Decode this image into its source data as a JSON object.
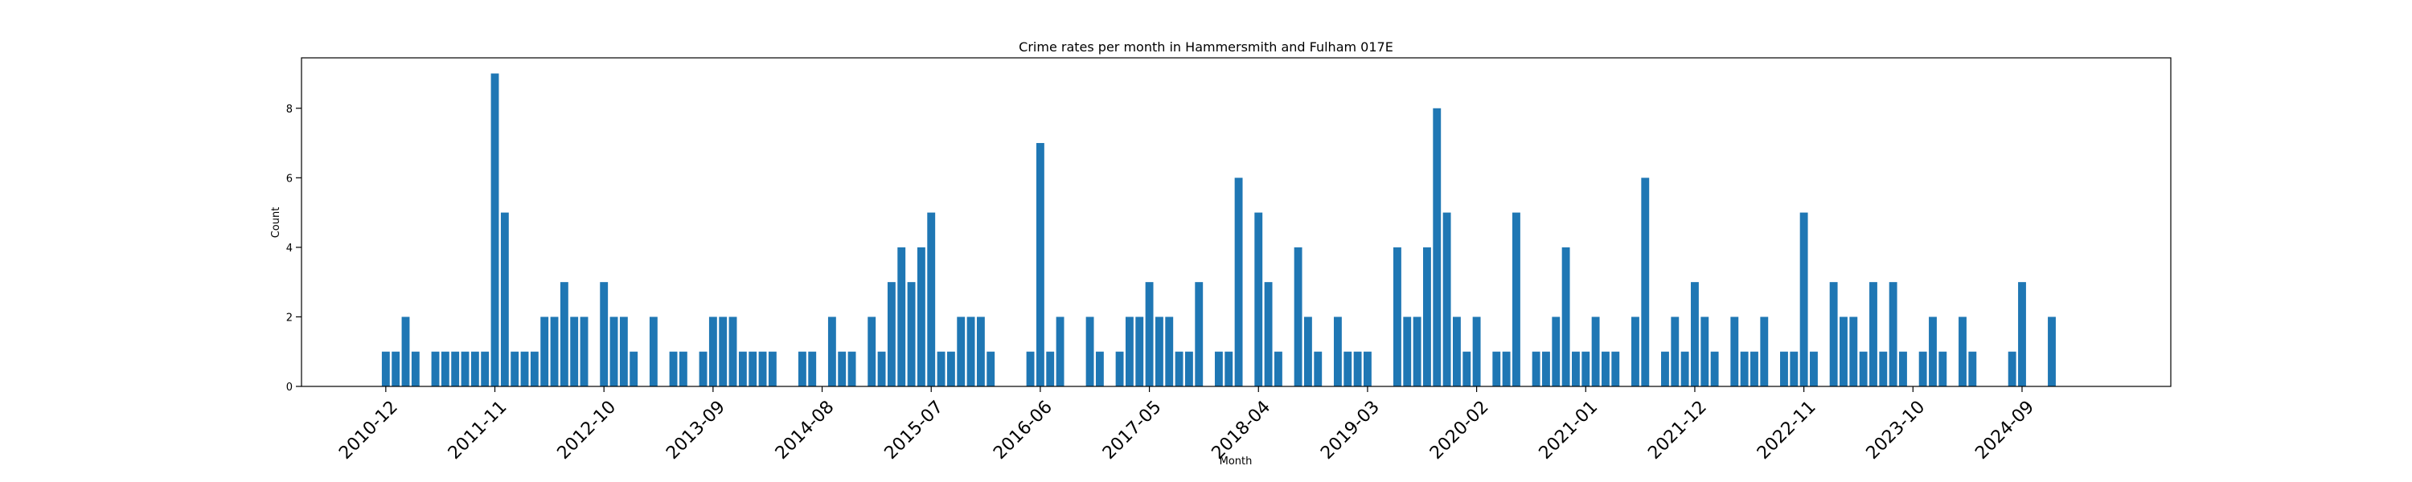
{
  "chart_data": {
    "type": "bar",
    "title": "Crime rates per month in Hammersmith and Fulham 017E",
    "xlabel": "Month",
    "ylabel": "Count",
    "ylim": [
      0,
      9.45
    ],
    "yticks": [
      0,
      2,
      4,
      6,
      8
    ],
    "x_start": "2010-12",
    "xlim_months": [
      -8.5,
      180
    ],
    "xticks": [
      "2010-12",
      "2011-11",
      "2012-10",
      "2013-09",
      "2014-08",
      "2015-07",
      "2016-06",
      "2017-05",
      "2018-04",
      "2019-03",
      "2020-02",
      "2021-01",
      "2021-12",
      "2022-11",
      "2023-10",
      "2024-09"
    ],
    "months": [
      "2010-12",
      "2011-01",
      "2011-02",
      "2011-03",
      "2011-05",
      "2011-06",
      "2011-07",
      "2011-08",
      "2011-09",
      "2011-10",
      "2011-11",
      "2011-12",
      "2012-01",
      "2012-02",
      "2012-03",
      "2012-04",
      "2012-05",
      "2012-06",
      "2012-07",
      "2012-08",
      "2012-10",
      "2012-11",
      "2012-12",
      "2013-01",
      "2013-03",
      "2013-05",
      "2013-06",
      "2013-08",
      "2013-09",
      "2013-10",
      "2013-11",
      "2013-12",
      "2014-01",
      "2014-02",
      "2014-03",
      "2014-06",
      "2014-07",
      "2014-09",
      "2014-10",
      "2014-11",
      "2015-01",
      "2015-02",
      "2015-03",
      "2015-04",
      "2015-05",
      "2015-06",
      "2015-07",
      "2015-08",
      "2015-09",
      "2015-10",
      "2015-11",
      "2015-12",
      "2016-01",
      "2016-05",
      "2016-06",
      "2016-07",
      "2016-08",
      "2016-11",
      "2016-12",
      "2017-02",
      "2017-03",
      "2017-04",
      "2017-05",
      "2017-06",
      "2017-07",
      "2017-08",
      "2017-09",
      "2017-10",
      "2017-12",
      "2018-01",
      "2018-02",
      "2018-04",
      "2018-05",
      "2018-06",
      "2018-08",
      "2018-09",
      "2018-10",
      "2018-12",
      "2019-01",
      "2019-02",
      "2019-03",
      "2019-06",
      "2019-07",
      "2019-08",
      "2019-09",
      "2019-10",
      "2019-11",
      "2019-12",
      "2020-01",
      "2020-02",
      "2020-04",
      "2020-05",
      "2020-06",
      "2020-08",
      "2020-09",
      "2020-10",
      "2020-11",
      "2020-12",
      "2021-01",
      "2021-02",
      "2021-03",
      "2021-04",
      "2021-06",
      "2021-07",
      "2021-09",
      "2021-10",
      "2021-11",
      "2021-12",
      "2022-01",
      "2022-02",
      "2022-04",
      "2022-05",
      "2022-06",
      "2022-07",
      "2022-09",
      "2022-10",
      "2022-11",
      "2022-12",
      "2023-02",
      "2023-03",
      "2023-04",
      "2023-05",
      "2023-06",
      "2023-07",
      "2023-08",
      "2023-09",
      "2023-11",
      "2023-12",
      "2024-01",
      "2024-03",
      "2024-04",
      "2024-08",
      "2024-09",
      "2024-12"
    ],
    "values": [
      1,
      1,
      2,
      1,
      1,
      1,
      1,
      1,
      1,
      1,
      9,
      5,
      1,
      1,
      1,
      2,
      2,
      3,
      2,
      2,
      3,
      2,
      2,
      1,
      2,
      1,
      1,
      1,
      2,
      2,
      2,
      1,
      1,
      1,
      1,
      1,
      1,
      2,
      1,
      1,
      2,
      1,
      3,
      4,
      3,
      4,
      5,
      1,
      1,
      2,
      2,
      2,
      1,
      1,
      7,
      1,
      2,
      2,
      1,
      1,
      2,
      2,
      3,
      2,
      2,
      1,
      1,
      3,
      1,
      1,
      6,
      5,
      3,
      1,
      4,
      2,
      1,
      2,
      1,
      1,
      1,
      4,
      2,
      2,
      4,
      8,
      5,
      2,
      1,
      2,
      1,
      1,
      5,
      1,
      1,
      2,
      4,
      1,
      1,
      2,
      1,
      1,
      2,
      6,
      1,
      2,
      1,
      3,
      2,
      1,
      2,
      1,
      1,
      2,
      1,
      1,
      5,
      1,
      3,
      2,
      2,
      1,
      3,
      1,
      3,
      1,
      1,
      2,
      1,
      2,
      1,
      1,
      3,
      2
    ]
  }
}
